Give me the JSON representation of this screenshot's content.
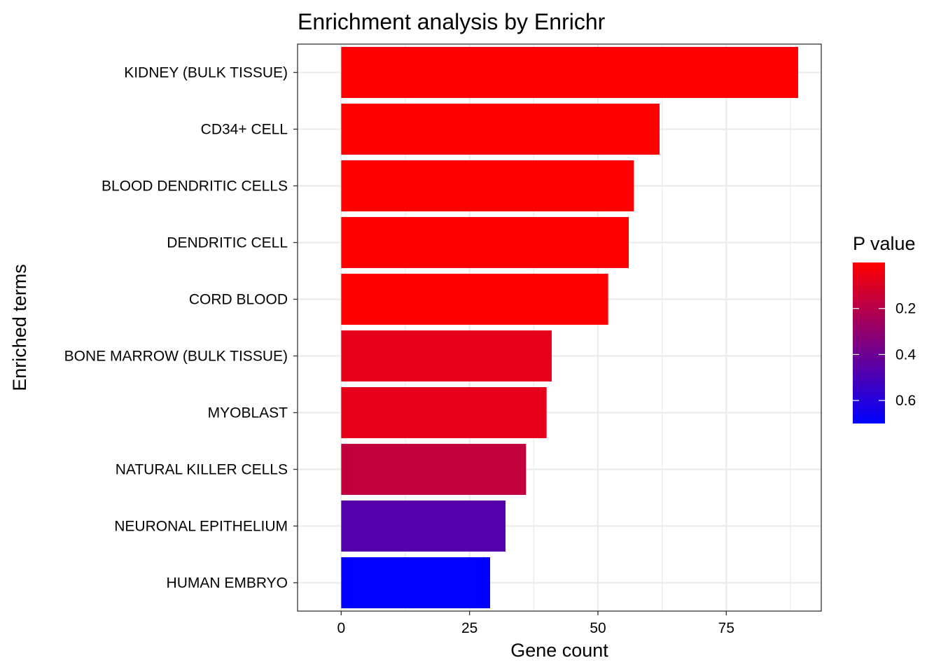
{
  "chart_data": {
    "type": "bar",
    "orientation": "horizontal",
    "title": "Enrichment analysis by Enrichr",
    "xlabel": "Gene count",
    "ylabel": "Enriched terms",
    "xlim": [
      -8.5,
      93.5
    ],
    "xticks": [
      0,
      25,
      50,
      75
    ],
    "grid": true,
    "legend_position": "right",
    "categories": [
      "KIDNEY (BULK TISSUE)",
      "CD34+ CELL",
      "BLOOD DENDRITIC CELLS",
      "DENDRITIC CELL",
      "CORD BLOOD",
      "BONE MARROW (BULK TISSUE)",
      "MYOBLAST",
      "NATURAL KILLER CELLS",
      "NEURONAL EPITHELIUM",
      "HUMAN EMBRYO"
    ],
    "values": [
      89,
      62,
      57,
      56,
      52,
      41,
      40,
      36,
      32,
      29
    ],
    "p_values": [
      0.0,
      0.0,
      0.0,
      0.0,
      0.0,
      0.07,
      0.07,
      0.17,
      0.47,
      0.7
    ],
    "color_scale": {
      "title": "P value",
      "low_color": "#FF0000",
      "high_color": "#0000FF",
      "domain": [
        0.0,
        0.7
      ],
      "ticks": [
        0.2,
        0.4,
        0.6
      ]
    }
  }
}
